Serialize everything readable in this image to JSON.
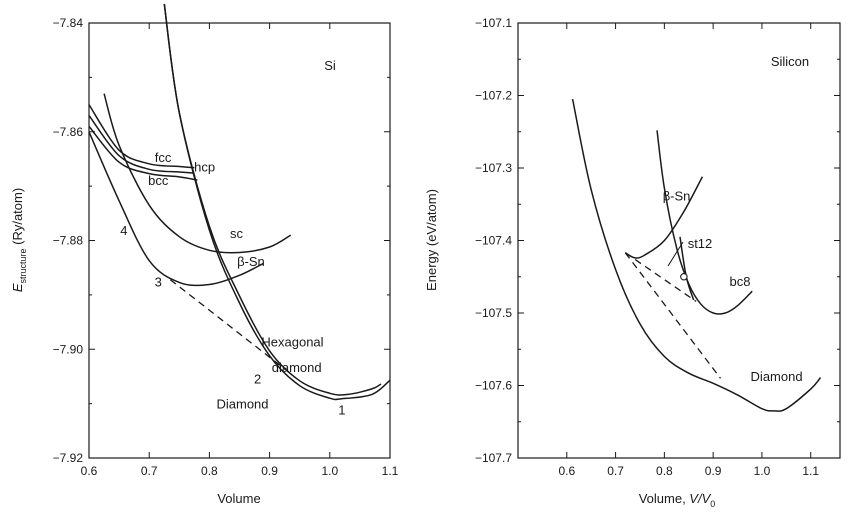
{
  "chart_data": [
    {
      "type": "line",
      "title": "",
      "xlabel": "Volume",
      "ylabel_main": "E",
      "ylabel_sub": "structure",
      "ylabel_unit": " (Ry/atom)",
      "xlim": [
        0.6,
        1.1
      ],
      "ylim": [
        -7.92,
        -7.84
      ],
      "xticks": [
        0.6,
        0.7,
        0.8,
        0.9,
        1.0,
        1.1
      ],
      "xtick_labels": [
        "0.6",
        "0.7",
        "0.8",
        "0.9",
        "1.0",
        "1.1"
      ],
      "yticks": [
        -7.92,
        -7.9,
        -7.88,
        -7.86,
        -7.84
      ],
      "ytick_labels": [
        "−7.92",
        "−7.90",
        "−7.88",
        "−7.86",
        "−7.84"
      ],
      "panel_label": "Si",
      "series": [
        {
          "name": "fcc",
          "points": [
            [
              0.6,
              -7.855
            ],
            [
              0.65,
              -7.8634
            ],
            [
              0.7,
              -7.8659
            ],
            [
              0.75,
              -7.8664
            ],
            [
              0.775,
              -7.8666
            ]
          ]
        },
        {
          "name": "hcp",
          "points": [
            [
              0.6,
              -7.857
            ],
            [
              0.65,
              -7.8644
            ],
            [
              0.7,
              -7.8669
            ],
            [
              0.75,
              -7.8674
            ],
            [
              0.775,
              -7.8676
            ]
          ]
        },
        {
          "name": "bcc",
          "points": [
            [
              0.6,
              -7.859
            ],
            [
              0.65,
              -7.8656
            ],
            [
              0.7,
              -7.8677
            ],
            [
              0.75,
              -7.8683
            ],
            [
              0.78,
              -7.8689
            ]
          ]
        },
        {
          "name": "sc",
          "points": [
            [
              0.625,
              -7.853
            ],
            [
              0.65,
              -7.8625
            ],
            [
              0.7,
              -7.8735
            ],
            [
              0.75,
              -7.8793
            ],
            [
              0.8,
              -7.8818
            ],
            [
              0.85,
              -7.8822
            ],
            [
              0.9,
              -7.8812
            ],
            [
              0.935,
              -7.879
            ]
          ]
        },
        {
          "name": "β-Sn",
          "points": [
            [
              0.6,
              -7.86
            ],
            [
              0.65,
              -7.8727
            ],
            [
              0.7,
              -7.8837
            ],
            [
              0.75,
              -7.8877
            ],
            [
              0.8,
              -7.8881
            ],
            [
              0.85,
              -7.8864
            ],
            [
              0.89,
              -7.8842
            ]
          ]
        },
        {
          "name": "Hexagonal diamond",
          "points": [
            [
              0.725,
              -7.8365
            ],
            [
              0.75,
              -7.8565
            ],
            [
              0.8,
              -7.8774
            ],
            [
              0.85,
              -7.8902
            ],
            [
              0.9,
              -7.9003
            ],
            [
              0.95,
              -7.9058
            ],
            [
              1.0,
              -7.9081
            ],
            [
              1.03,
              -7.9083
            ],
            [
              1.07,
              -7.9073
            ],
            [
              1.085,
              -7.9064
            ]
          ]
        },
        {
          "name": "Diamond",
          "points": [
            [
              0.725,
              -7.8365
            ],
            [
              0.75,
              -7.8565
            ],
            [
              0.8,
              -7.8781
            ],
            [
              0.85,
              -7.8915
            ],
            [
              0.9,
              -7.9012
            ],
            [
              0.95,
              -7.9067
            ],
            [
              1.0,
              -7.909
            ],
            [
              1.02,
              -7.9091
            ],
            [
              1.07,
              -7.9083
            ],
            [
              1.1,
              -7.9057
            ]
          ]
        },
        {
          "name": "",
          "style": "dashed",
          "points": [
            [
              0.735,
              -7.8872
            ],
            [
              0.935,
              -7.9045
            ]
          ]
        }
      ],
      "annotations": [
        {
          "text": "fcc",
          "x": 0.723,
          "y": -7.8656
        },
        {
          "text": "hcp",
          "x": 0.792,
          "y": -7.8673
        },
        {
          "text": "bcc",
          "x": 0.715,
          "y": -7.8698
        },
        {
          "text": "sc",
          "x": 0.845,
          "y": -7.8795
        },
        {
          "text": "β-Sn",
          "x": 0.869,
          "y": -7.8847
        },
        {
          "text": "Hexagonal",
          "x": 0.938,
          "y": -7.8995
        },
        {
          "text": "diamond",
          "x": 0.945,
          "y": -7.9042
        },
        {
          "text": "Diamond",
          "x": 0.855,
          "y": -7.9109
        },
        {
          "text": "1",
          "x": 1.02,
          "y": -7.912
        },
        {
          "text": "2",
          "x": 0.88,
          "y": -7.9063
        },
        {
          "text": "3",
          "x": 0.715,
          "y": -7.8885
        },
        {
          "text": "4",
          "x": 0.658,
          "y": -7.879
        }
      ]
    },
    {
      "type": "line",
      "title": "",
      "xlabel": "Volume, ",
      "xlabel_italic": "V/V",
      "xlabel_sub": "0",
      "ylabel": "Energy (eV/atom)",
      "xlim": [
        0.5,
        1.16
      ],
      "ylim": [
        -107.7,
        -107.1
      ],
      "xticks": [
        0.6,
        0.7,
        0.8,
        0.9,
        1.0,
        1.1
      ],
      "xtick_labels": [
        "0.6",
        "0.7",
        "0.8",
        "0.9",
        "1.0",
        "1.1"
      ],
      "yticks": [
        -107.7,
        -107.6,
        -107.5,
        -107.4,
        -107.3,
        -107.2,
        -107.1
      ],
      "ytick_labels": [
        "−107.7",
        "−107.6",
        "−107.5",
        "−107.4",
        "−107.3",
        "−107.2",
        "−107.1"
      ],
      "panel_label": "Silicon",
      "series": [
        {
          "name": "Diamond",
          "points": [
            [
              0.612,
              -107.205
            ],
            [
              0.65,
              -107.33
            ],
            [
              0.7,
              -107.44
            ],
            [
              0.75,
              -107.515
            ],
            [
              0.8,
              -107.56
            ],
            [
              0.85,
              -107.583
            ],
            [
              0.9,
              -107.597
            ],
            [
              0.95,
              -107.613
            ],
            [
              1.0,
              -107.632
            ],
            [
              1.025,
              -107.635
            ],
            [
              1.05,
              -107.632
            ],
            [
              1.1,
              -107.605
            ],
            [
              1.12,
              -107.589
            ]
          ]
        },
        {
          "name": "β-Sn",
          "points": [
            [
              0.72,
              -107.417
            ],
            [
              0.74,
              -107.424
            ],
            [
              0.76,
              -107.42
            ],
            [
              0.8,
              -107.4
            ],
            [
              0.84,
              -107.36
            ],
            [
              0.878,
              -107.312
            ]
          ]
        },
        {
          "name": "bc8",
          "points": [
            [
              0.785,
              -107.248
            ],
            [
              0.8,
              -107.328
            ],
            [
              0.825,
              -107.41
            ],
            [
              0.85,
              -107.46
            ],
            [
              0.875,
              -107.488
            ],
            [
              0.9,
              -107.5
            ],
            [
              0.925,
              -107.5
            ],
            [
              0.95,
              -107.49
            ],
            [
              0.98,
              -107.47
            ]
          ]
        },
        {
          "name": "st12",
          "points": [
            [
              0.832,
              -107.395
            ],
            [
              0.845,
              -107.45
            ],
            [
              0.86,
              -107.482
            ]
          ]
        },
        {
          "name": "",
          "style": "dashed",
          "points": [
            [
              0.72,
              -107.417
            ],
            [
              0.915,
              -107.59
            ]
          ]
        },
        {
          "name": "",
          "style": "dashed",
          "points": [
            [
              0.72,
              -107.417
            ],
            [
              0.865,
              -107.484
            ]
          ]
        }
      ],
      "markers": [
        {
          "x": 0.84,
          "y": -107.45
        }
      ],
      "annotations": [
        {
          "text": "β-Sn",
          "x": 0.825,
          "y": -107.345
        },
        {
          "text": "st12",
          "x": 0.873,
          "y": -107.41
        },
        {
          "text": "bc8",
          "x": 0.955,
          "y": -107.463
        },
        {
          "text": "Diamond",
          "x": 1.03,
          "y": -107.594
        }
      ]
    }
  ]
}
